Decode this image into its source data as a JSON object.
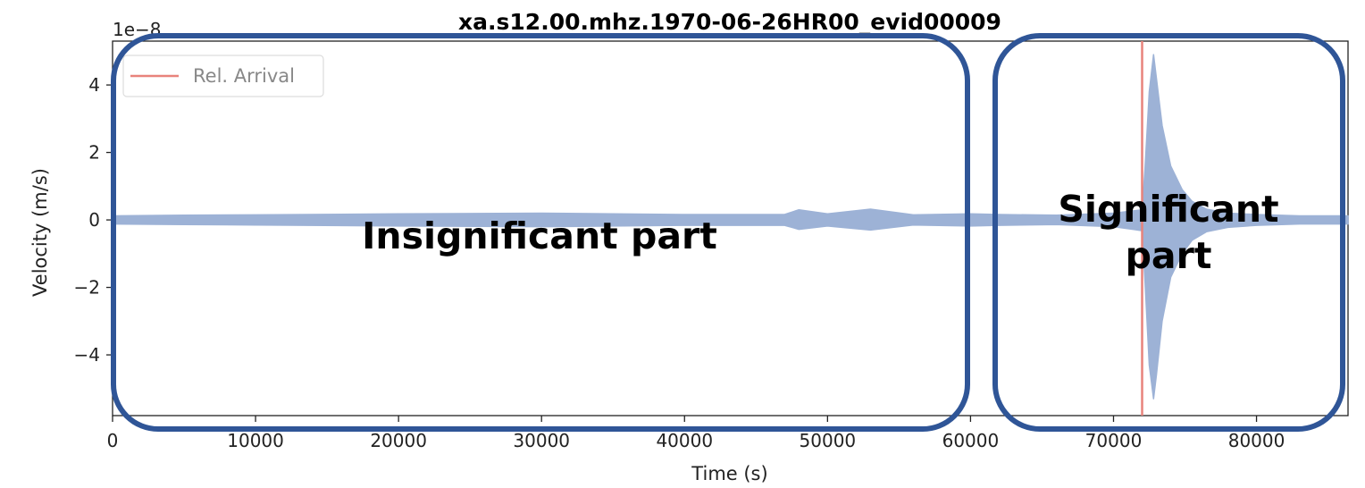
{
  "chart_data": {
    "type": "line",
    "title": "xa.s12.00.mhz.1970-06-26HR00_evid00009",
    "xlabel": "Time (s)",
    "ylabel": "Velocity (m/s)",
    "y_offset_label": "1e−8",
    "xlim": [
      0,
      86400
    ],
    "ylim": [
      -5.8,
      5.3
    ],
    "y_scale_factor": 1e-08,
    "x_ticks": [
      0,
      10000,
      20000,
      30000,
      40000,
      50000,
      60000,
      70000,
      80000
    ],
    "x_tick_labels": [
      "0",
      "10000",
      "20000",
      "30000",
      "40000",
      "50000",
      "60000",
      "70000",
      "80000"
    ],
    "y_ticks": [
      4,
      2,
      0,
      -2,
      -4
    ],
    "y_tick_labels": [
      "4",
      "2",
      "0",
      "−2",
      "−4"
    ],
    "grid": false,
    "legend_position": "top-left",
    "series": [
      {
        "name": "",
        "color": "#9db2d6",
        "envelope": {
          "x": [
            0,
            5000,
            10000,
            20000,
            30000,
            40000,
            47000,
            48000,
            50000,
            53000,
            56000,
            60000,
            62000,
            66000,
            70000,
            72000,
            72200,
            72500,
            72800,
            73000,
            73400,
            74000,
            74800,
            75500,
            76500,
            78000,
            80000,
            83000,
            86400
          ],
          "y_max": [
            0.12,
            0.14,
            0.15,
            0.18,
            0.2,
            0.16,
            0.16,
            0.3,
            0.18,
            0.32,
            0.15,
            0.18,
            0.16,
            0.14,
            0.2,
            0.3,
            1.5,
            3.8,
            4.9,
            4.2,
            2.8,
            1.6,
            0.9,
            0.55,
            0.32,
            0.2,
            0.16,
            0.12,
            0.12
          ],
          "y_min": [
            -0.12,
            -0.14,
            -0.15,
            -0.18,
            -0.2,
            -0.16,
            -0.16,
            -0.28,
            -0.18,
            -0.3,
            -0.15,
            -0.18,
            -0.16,
            -0.14,
            -0.2,
            -0.32,
            -1.8,
            -4.3,
            -5.3,
            -4.6,
            -3.0,
            -1.7,
            -1.0,
            -0.6,
            -0.35,
            -0.22,
            -0.16,
            -0.12,
            -0.12
          ]
        }
      }
    ],
    "vertical_lines": [
      {
        "name": "Rel. Arrival",
        "x": 72000,
        "color": "#e8837b"
      }
    ],
    "legend": [
      {
        "label": "Rel. Arrival",
        "color": "#e8837b"
      }
    ],
    "annotations": [
      {
        "label": "Insignificant part",
        "x_range": [
          0,
          60000
        ]
      },
      {
        "label_lines": [
          "Significant",
          "part"
        ],
        "x_range": [
          62000,
          86400
        ]
      }
    ],
    "annotation_border_color": "#2f5597"
  }
}
